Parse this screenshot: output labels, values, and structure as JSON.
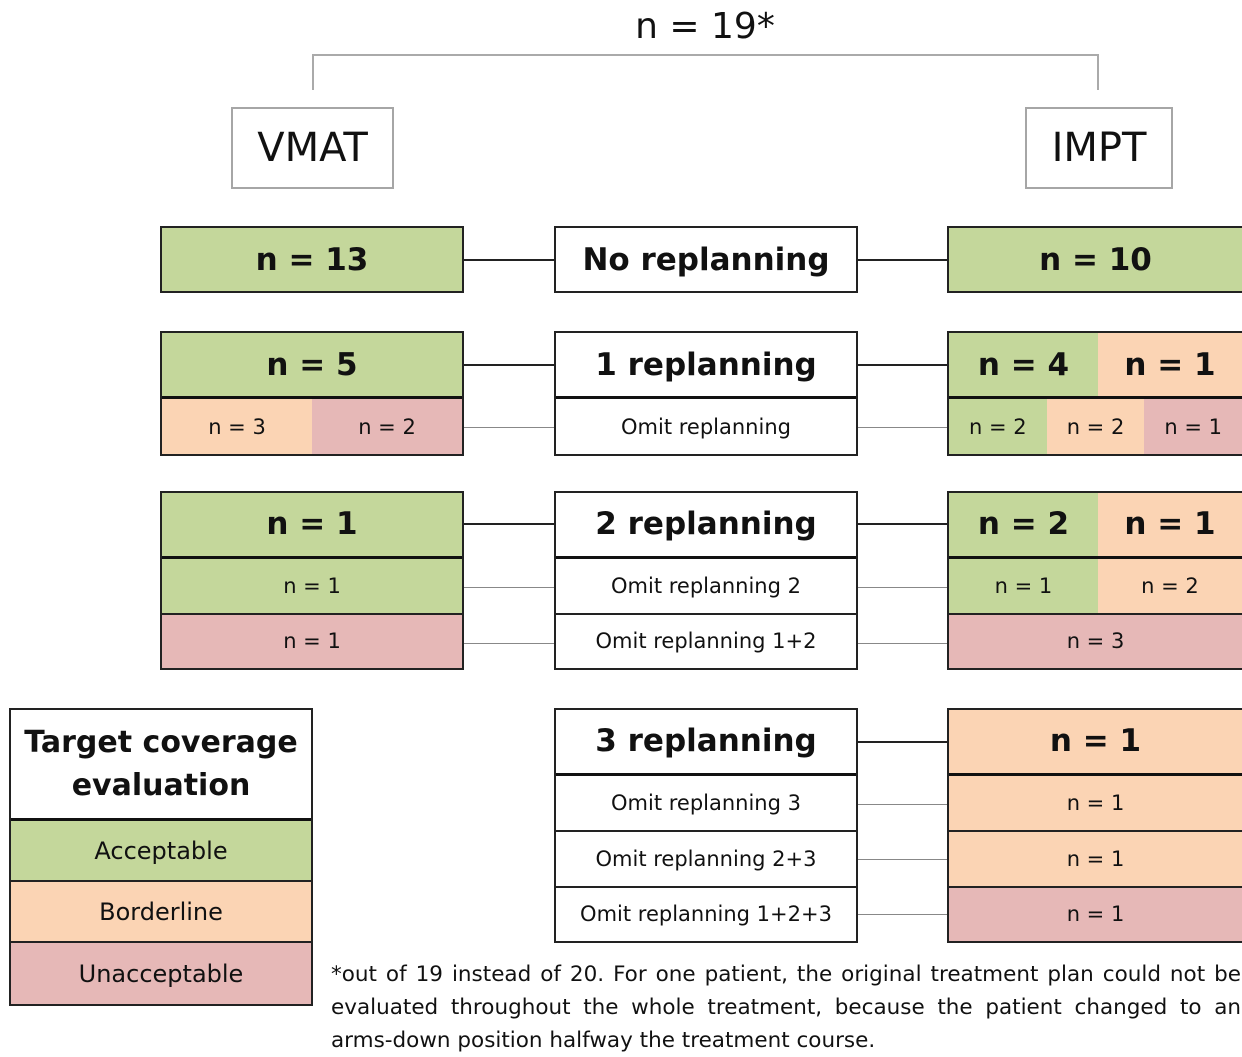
{
  "header": {
    "total": "n = 19*"
  },
  "arms": [
    "VMAT",
    "IMPT"
  ],
  "groups": [
    {
      "title": "No replanning",
      "vmat": [
        "n = 13"
      ],
      "impt": [
        "n = 10"
      ]
    },
    {
      "title": "1 replanning",
      "vmat": [
        "n = 5"
      ],
      "impt": [
        "n = 4",
        "n = 1"
      ],
      "rows": [
        {
          "label": "Omit replanning",
          "vmat": [
            "n = 3",
            "n = 2"
          ],
          "impt": [
            "n = 2",
            "n = 2",
            "n = 1"
          ]
        }
      ]
    },
    {
      "title": "2 replanning",
      "vmat": [
        "n = 1"
      ],
      "impt": [
        "n = 2",
        "n = 1"
      ],
      "rows": [
        {
          "label": "Omit replanning 2",
          "vmat": [
            "n = 1"
          ],
          "impt": [
            "n = 1",
            "n = 2"
          ]
        },
        {
          "label": "Omit replanning 1+2",
          "vmat": [
            "n = 1"
          ],
          "impt": [
            "n = 3"
          ]
        }
      ]
    },
    {
      "title": "3 replanning",
      "impt": [
        "n = 1"
      ],
      "rows": [
        {
          "label": "Omit replanning 3",
          "impt": [
            "n = 1"
          ]
        },
        {
          "label": "Omit replanning 2+3",
          "impt": [
            "n = 1"
          ]
        },
        {
          "label": "Omit replanning 1+2+3",
          "impt": [
            "n = 1"
          ]
        }
      ]
    }
  ],
  "legend": {
    "title": "Target coverage evaluation",
    "items": [
      "Acceptable",
      "Borderline",
      "Unacceptable"
    ]
  },
  "footnote": "*out of 19 instead of 20. For one patient, the original treatment plan could not be evaluated throughout the whole treatment, because the patient changed to an arms-down position halfway the treatment course."
}
